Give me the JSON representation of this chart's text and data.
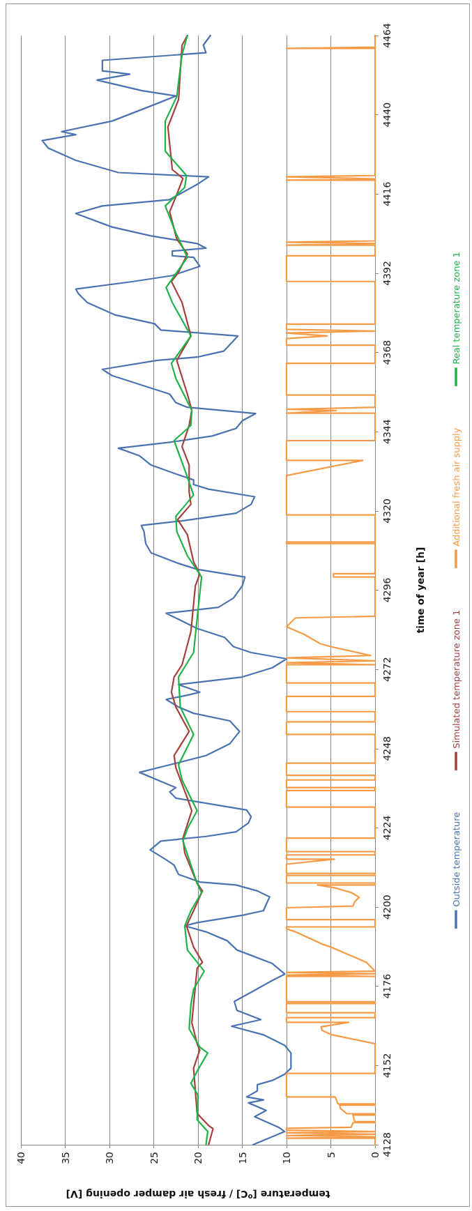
{
  "chart_data": {
    "type": "line",
    "ylabel": "time of year [h]",
    "xlabel": "temperature [$^{o}$C] / fresh air damper opening [V]",
    "ylim": [
      4128,
      4464
    ],
    "yticks": [
      4128,
      4152,
      4176,
      4200,
      4224,
      4248,
      4272,
      4296,
      4320,
      4344,
      4368,
      4392,
      4416,
      4440,
      4464
    ],
    "xlim": [
      40,
      0
    ],
    "xticks": [
      40,
      35,
      30,
      25,
      20,
      15,
      10,
      5,
      0
    ],
    "grid": "x",
    "legend": "right",
    "marker": "none",
    "series": [
      {
        "name": "Outside temperature",
        "color": "#4a72b0",
        "values": [
          4128,
          4132,
          4133.3,
          4136.5,
          4138.4,
          4140.7,
          4141.6,
          4142.5,
          4144.3,
          4146.2,
          4147.5,
          4149.4,
          4151.2,
          4155.8,
          4158.1,
          4161.3,
          4163.9,
          4165.9,
          4168.7,
          4171.4,
          4174.2,
          4177.8,
          4179.7,
          4182.9,
          4187,
          4189.8,
          4192.5,
          4194.3,
          4195.3,
          4197.5,
          4198.9,
          4200.8,
          4203.1,
          4204.9,
          4206.7,
          4207.6,
          4209.9,
          4212.7,
          4214.5,
          4217.3,
          4220,
          4221.4,
          4222.8,
          4225.5,
          4227.4,
          4229.4,
          4233,
          4234.9,
          4236.2,
          4238.1,
          4240.8,
          4243.1,
          4245.9,
          4249.5,
          4253.2,
          4256.4,
          4258.7,
          4260.6,
          4262.9,
          4264.2,
          4265.1,
          4267.4,
          4269.7,
          4272.5,
          4275.2,
          4277.1,
          4278.9,
          4281.7,
          4284.4,
          4287.2,
          4289,
          4290.8,
          4293.6,
          4297.3,
          4300,
          4302.3,
          4304.1,
          4307.3,
          4310.1,
          4313.8,
          4315.6,
          4317,
          4319.3,
          4322,
          4324.3,
          4326.6,
          4328,
          4329.4,
          4331.2,
          4333.9,
          4336.7,
          4339,
          4340.8,
          4342.7,
          4345,
          4347.3,
          4349.5,
          4351.4,
          4352.8,
          4355.4,
          4361,
          4362.9,
          4365.6,
          4366.6,
          4368.4,
          4373,
          4374.8,
          4376.7,
          4379.4,
          4383.1,
          4385.8,
          4387.2,
          4389.5,
          4391.3,
          4394.1,
          4396.8,
          4397.3,
          4398.7,
          4399.6,
          4401,
          4403.3,
          4406,
          4410.1,
          4412.4,
          4414.3,
          4418.9,
          4421.2,
          4422.5,
          4426.2,
          4429.9,
          4432.2,
          4434,
          4434.9,
          4438.1,
          4442.7,
          4445.7,
          4447.3,
          4450.5,
          4452.3,
          4453.3,
          4456.5,
          4458.8,
          4461.1,
          4464
        ],
        "x": [
          13.8,
          10.2,
          10.9,
          13.6,
          12.3,
          14.3,
          12.6,
          14.5,
          13.3,
          13.3,
          11.6,
          10.2,
          9.5,
          9.5,
          10.2,
          12.6,
          16.2,
          12.9,
          15.6,
          15.9,
          14,
          11.6,
          10.2,
          11.6,
          15.6,
          16.7,
          19.1,
          21.5,
          20.1,
          15,
          12.6,
          12.3,
          11.9,
          13.3,
          15.7,
          19.8,
          22.2,
          22.7,
          23.7,
          25.4,
          24.2,
          19.1,
          15.7,
          14.3,
          14,
          14.5,
          22.5,
          23.2,
          22.5,
          24.2,
          26.6,
          23.2,
          19.1,
          16.4,
          15.3,
          16.4,
          20.5,
          22.2,
          23.6,
          21.2,
          19.8,
          22.2,
          15,
          11.6,
          10,
          14,
          16,
          17,
          20.1,
          22.2,
          23.6,
          17.7,
          16,
          15,
          14.7,
          20.1,
          22.2,
          25.3,
          25.9,
          26.1,
          26.4,
          21.8,
          15.7,
          14,
          13.6,
          18.8,
          20.5,
          20.5,
          22.5,
          25.3,
          26.6,
          29,
          23.2,
          18.4,
          15.7,
          15,
          13.5,
          21.2,
          22.5,
          23.2,
          29.7,
          30.8,
          24.6,
          20.1,
          17.1,
          15.5,
          24.2,
          24.9,
          29.4,
          32.5,
          33.5,
          33.8,
          27.3,
          22.9,
          19.8,
          20.5,
          22.9,
          22.9,
          19.1,
          20.1,
          25.3,
          29.7,
          33.8,
          30.8,
          23.2,
          20.1,
          18.8,
          29,
          33.8,
          36.9,
          37.6,
          33.8,
          35.4,
          29.7,
          25.3,
          22.5,
          26.3,
          31.4,
          27.7,
          30.8,
          30.8,
          19.1,
          19.4,
          18.6
        ]
      },
      {
        "name": "Simulated temperature zone 1",
        "color": "#a5403d",
        "values": [
          4128,
          4132.9,
          4133.8,
          4137.5,
          4151.2,
          4156.7,
          4158.6,
          4165,
          4181.5,
          4183.3,
          4187.9,
          4194.3,
          4198.9,
          4204.9,
          4207.2,
          4216.4,
          4220.9,
          4229.2,
          4233,
          4242.2,
          4245.9,
          4253.2,
          4260.6,
          4265.1,
          4269.7,
          4273.4,
          4283.5,
          4297.3,
          4300.9,
          4304.6,
          4312.8,
          4317.4,
          4322,
          4325.7,
          4333.9,
          4339.5,
          4345.9,
          4350.5,
          4355.4,
          4365.6,
          4373,
          4383.1,
          4389.5,
          4392.3,
          4397.8,
          4402.4,
          4410.6,
          4415.2,
          4420.7,
          4423.4,
          4436.3,
          4444.6,
          4461.1,
          4464
        ],
        "x": [
          18.8,
          18.3,
          18.8,
          20.1,
          20.5,
          19.8,
          20.1,
          20.7,
          20.1,
          19.5,
          20.5,
          21.3,
          20.5,
          19.5,
          20.1,
          21.5,
          21.7,
          20.7,
          21.2,
          22.5,
          22.7,
          21,
          22.5,
          23,
          22.7,
          21.8,
          20.8,
          20.3,
          19.8,
          20.5,
          21.2,
          22.3,
          20.8,
          21,
          21,
          21.8,
          21,
          20.7,
          21.2,
          22.4,
          20.8,
          21.8,
          23,
          22.2,
          21.2,
          22.4,
          23.2,
          22.5,
          21.7,
          22.9,
          23.4,
          22.2,
          21.8,
          21.2
        ]
      },
      {
        "name": "Additional fresh air supply",
        "color": "#f79a46",
        "values": [
          4128,
          4130,
          4130,
          4130.4,
          4130.8,
          4131.2,
          4131.6,
          4132,
          4132.4,
          4133,
          4133.3,
          4134.7,
          4134.7,
          4135,
          4135,
          4137,
          4137,
          4137.4,
          4137.4,
          4139,
          4140,
          4140,
          4140.4,
          4140.4,
          4142.5,
          4142.5,
          4149.6,
          4149.6,
          4158.6,
          4161.4,
          4162.7,
          4163.7,
          4165.1,
          4165.1,
          4166.5,
          4166.5,
          4168,
          4168,
          4170.8,
          4170.8,
          4171.3,
          4171.3,
          4179,
          4179,
          4179.4,
          4179.8,
          4180.2,
          4180.6,
          4183.3,
          4187.9,
          4188.8,
          4192.5,
          4193.4,
          4194,
          4194,
          4196.2,
          4196.2,
          4199.8,
          4200.3,
          4201.6,
          4203,
          4204.4,
          4205.8,
          4206.7,
          4206.7,
          4207.3,
          4207.3,
          4209.6,
          4209.6,
          4210.2,
          4210.2,
          4213,
          4214.5,
          4214.5,
          4215.8,
          4215.8,
          4216.8,
          4216.8,
          4220.9,
          4220.9,
          4230.3,
          4230.3,
          4235.3,
          4235.3,
          4236.2,
          4236.2,
          4238.5,
          4238.5,
          4239.9,
          4239.9,
          4243.6,
          4243.6,
          4252.3,
          4252.3,
          4256.1,
          4256.1,
          4259.2,
          4259.2,
          4263.8,
          4263.8,
          4267.9,
          4267.9,
          4273.4,
          4273.4,
          4274,
          4274.6,
          4275.5,
          4276.2,
          4278.9,
          4279.8,
          4282.6,
          4284.9,
          4287.6,
          4288.1,
          4300,
          4300,
          4301,
          4301,
          4310.1,
          4310.1,
          4310.6,
          4310.6,
          4318.8,
          4318.8,
          4330.7,
          4335.3,
          4335.3,
          4341.3,
          4341.3,
          4349.6,
          4349.6,
          4350.4,
          4350.8,
          4351.4,
          4355.1,
          4355.1,
          4364.7,
          4364.7,
          4370.2,
          4370.2,
          4372.2,
          4373,
          4373.9,
          4374.5,
          4375,
          4376.6,
          4376.6,
          4389.5,
          4389.5,
          4397.3,
          4397.3,
          4400.5,
          4400.5,
          4401,
          4401.4,
          4401.8,
          4420.2,
          4420.2,
          4420.6,
          4421.2,
          4421.6,
          4460.1,
          4460.1,
          4460.5,
          4464
        ],
        "x": [
          0,
          0,
          10,
          0,
          10,
          0,
          10,
          0,
          10,
          10,
          2.7,
          2.5,
          0,
          0,
          2.3,
          2.5,
          0,
          0,
          3.2,
          3.9,
          4,
          0,
          0,
          4.2,
          4.5,
          10,
          10,
          0,
          0,
          5,
          6,
          6.1,
          3,
          10,
          10,
          0,
          0,
          10,
          10,
          0,
          0,
          10,
          10,
          0,
          10,
          0,
          10,
          0,
          1,
          5,
          6,
          9,
          10,
          10,
          0,
          0,
          10,
          10,
          2.5,
          2.3,
          1.8,
          2.7,
          4.5,
          6.5,
          0,
          0,
          10,
          10,
          0,
          0,
          10,
          10,
          4.6,
          10,
          10,
          0,
          0,
          10,
          10,
          0,
          0,
          10,
          10,
          0,
          0,
          10,
          10,
          0,
          0,
          10,
          10,
          0,
          0,
          10,
          10,
          0,
          0,
          10,
          10,
          0,
          0,
          10,
          10,
          0,
          10,
          0,
          10,
          0.5,
          5,
          6.2,
          8,
          10,
          9,
          0,
          0,
          4.7,
          4.7,
          0,
          0,
          10,
          10,
          0,
          0,
          10,
          10,
          1.4,
          10,
          10,
          0,
          0,
          10,
          4.4,
          10,
          0,
          0,
          10,
          10,
          0,
          0,
          10,
          10,
          5.4,
          10,
          0,
          10,
          10,
          0,
          0,
          10,
          10,
          0,
          0,
          10,
          0,
          10,
          0,
          0,
          10,
          0,
          10,
          0,
          0,
          10,
          0,
          0
        ]
      },
      {
        "name": "Real temperature zone 1",
        "color": "#1fb24a",
        "values": [
          4128,
          4132,
          4135.6,
          4143,
          4146.6,
          4150.3,
          4155.8,
          4157.6,
          4163.1,
          4170.5,
          4175.1,
          4180.6,
          4183.3,
          4187,
          4194.3,
          4198.9,
          4204.4,
          4207.2,
          4220,
          4223.7,
          4229.2,
          4233,
          4238.5,
          4243.1,
          4252.3,
          4260.6,
          4269.7,
          4277.1,
          4289.9,
          4300,
          4306.4,
          4313.8,
          4318.4,
          4324.8,
          4330.3,
          4341.3,
          4345.9,
          4350.5,
          4360.1,
          4364.7,
          4373,
          4383.1,
          4387.7,
          4396.8,
          4404.2,
          4412.4,
          4418,
          4421.6,
          4429,
          4438.1,
          4445.5,
          4458.3,
          4464
        ],
        "x": [
          19.1,
          18.9,
          20.1,
          20,
          20.8,
          20.1,
          18.9,
          19.8,
          21,
          20.8,
          20.5,
          19.3,
          20.1,
          21.2,
          21.5,
          20.8,
          19.6,
          20.1,
          21.7,
          21.2,
          20.1,
          20.8,
          21.8,
          22.2,
          20.5,
          22,
          22.2,
          20.5,
          20,
          19.6,
          21.2,
          22.4,
          22.5,
          20.5,
          21.2,
          22.7,
          20.8,
          20.7,
          22.5,
          23,
          20.8,
          22.9,
          23.6,
          21.2,
          22.5,
          23.7,
          21.5,
          21.3,
          23.7,
          23.7,
          22.4,
          21.8,
          21.2
        ]
      }
    ]
  }
}
